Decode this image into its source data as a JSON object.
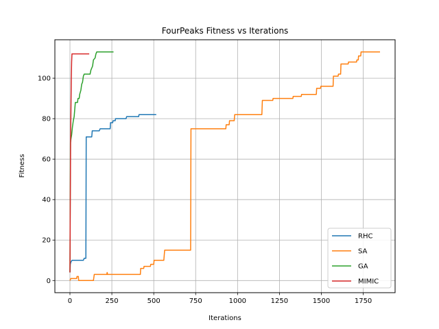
{
  "chart_data": {
    "type": "line",
    "title": "FourPeaks Fitness vs Iterations",
    "xlabel": "Iterations",
    "ylabel": "Fitness",
    "xlim": [
      -90,
      1940
    ],
    "ylim": [
      -6,
      119
    ],
    "xticks": [
      0,
      250,
      500,
      750,
      1000,
      1250,
      1500,
      1750
    ],
    "yticks": [
      0,
      20,
      40,
      60,
      80,
      100
    ],
    "grid": true,
    "legend_position": "lower-right",
    "series": [
      {
        "name": "RHC",
        "color": "#1f77b4",
        "points": [
          [
            0,
            4
          ],
          [
            2,
            8
          ],
          [
            5,
            9
          ],
          [
            12,
            10
          ],
          [
            80,
            10
          ],
          [
            85,
            11
          ],
          [
            95,
            11
          ],
          [
            97,
            71
          ],
          [
            130,
            71
          ],
          [
            133,
            74
          ],
          [
            175,
            74
          ],
          [
            180,
            75
          ],
          [
            240,
            75
          ],
          [
            242,
            78
          ],
          [
            255,
            78
          ],
          [
            257,
            79
          ],
          [
            270,
            79
          ],
          [
            272,
            80
          ],
          [
            335,
            80
          ],
          [
            338,
            81
          ],
          [
            410,
            81
          ],
          [
            412,
            82
          ],
          [
            515,
            82
          ]
        ]
      },
      {
        "name": "SA",
        "color": "#ff7f0e",
        "points": [
          [
            0,
            0
          ],
          [
            5,
            1
          ],
          [
            40,
            1
          ],
          [
            42,
            2
          ],
          [
            50,
            2
          ],
          [
            52,
            0
          ],
          [
            140,
            0
          ],
          [
            145,
            3
          ],
          [
            220,
            3
          ],
          [
            222,
            4
          ],
          [
            224,
            3
          ],
          [
            420,
            3
          ],
          [
            422,
            6
          ],
          [
            440,
            6
          ],
          [
            442,
            7
          ],
          [
            480,
            7
          ],
          [
            482,
            8
          ],
          [
            500,
            8
          ],
          [
            502,
            10
          ],
          [
            560,
            10
          ],
          [
            565,
            15
          ],
          [
            720,
            15
          ],
          [
            722,
            75
          ],
          [
            930,
            75
          ],
          [
            932,
            77
          ],
          [
            950,
            77
          ],
          [
            952,
            79
          ],
          [
            980,
            79
          ],
          [
            983,
            82
          ],
          [
            1145,
            82
          ],
          [
            1148,
            89
          ],
          [
            1210,
            89
          ],
          [
            1212,
            90
          ],
          [
            1330,
            90
          ],
          [
            1332,
            91
          ],
          [
            1380,
            91
          ],
          [
            1382,
            92
          ],
          [
            1470,
            92
          ],
          [
            1472,
            95
          ],
          [
            1495,
            95
          ],
          [
            1497,
            96
          ],
          [
            1570,
            96
          ],
          [
            1572,
            101
          ],
          [
            1600,
            101
          ],
          [
            1602,
            102
          ],
          [
            1615,
            102
          ],
          [
            1617,
            107
          ],
          [
            1660,
            107
          ],
          [
            1662,
            108
          ],
          [
            1710,
            108
          ],
          [
            1712,
            109
          ],
          [
            1720,
            109
          ],
          [
            1722,
            111
          ],
          [
            1735,
            111
          ],
          [
            1737,
            113
          ],
          [
            1850,
            113
          ]
        ]
      },
      {
        "name": "GA",
        "color": "#2ca02c",
        "points": [
          [
            0,
            4
          ],
          [
            3,
            68
          ],
          [
            6,
            70
          ],
          [
            10,
            72
          ],
          [
            15,
            76
          ],
          [
            20,
            79
          ],
          [
            25,
            81
          ],
          [
            28,
            84
          ],
          [
            32,
            88
          ],
          [
            45,
            88
          ],
          [
            48,
            90
          ],
          [
            55,
            90
          ],
          [
            58,
            92
          ],
          [
            65,
            94
          ],
          [
            70,
            97
          ],
          [
            75,
            98
          ],
          [
            80,
            101
          ],
          [
            85,
            102
          ],
          [
            120,
            102
          ],
          [
            125,
            104
          ],
          [
            135,
            106
          ],
          [
            140,
            109
          ],
          [
            150,
            110
          ],
          [
            155,
            112
          ],
          [
            160,
            113
          ],
          [
            260,
            113
          ]
        ]
      },
      {
        "name": "MIMIC",
        "color": "#d62728",
        "points": [
          [
            0,
            4
          ],
          [
            2,
            40
          ],
          [
            4,
            70
          ],
          [
            6,
            85
          ],
          [
            8,
            100
          ],
          [
            10,
            108
          ],
          [
            12,
            112
          ],
          [
            115,
            112
          ]
        ]
      }
    ]
  }
}
